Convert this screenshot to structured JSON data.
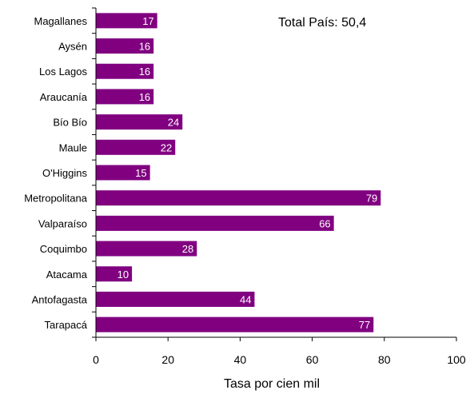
{
  "chart_data": {
    "type": "bar",
    "orientation": "horizontal",
    "categories": [
      "Magallanes",
      "Aysén",
      "Los Lagos",
      "Araucanía",
      "Bío Bío",
      "Maule",
      "O'Higgins",
      "Metropolitana",
      "Valparaíso",
      "Coquimbo",
      "Atacama",
      "Antofagasta",
      "Tarapacá"
    ],
    "values": [
      17,
      16,
      16,
      16,
      24,
      22,
      15,
      79,
      66,
      28,
      10,
      44,
      77
    ],
    "data_labels": [
      "17",
      "16",
      "16",
      "16",
      "24",
      "22",
      "15",
      "79",
      "66",
      "28",
      "10",
      "44",
      "77"
    ],
    "xlabel": "Tasa por cien mil",
    "ylabel": "",
    "xlim": [
      0,
      100
    ],
    "xticks": [
      0,
      20,
      40,
      60,
      80,
      100
    ],
    "xtick_labels": [
      "0",
      "20",
      "40",
      "60",
      "80",
      "100"
    ],
    "annotation": "Total País: 50,4",
    "grid": false,
    "bar_color": "#800080",
    "value_label_color": "#ffffff"
  }
}
